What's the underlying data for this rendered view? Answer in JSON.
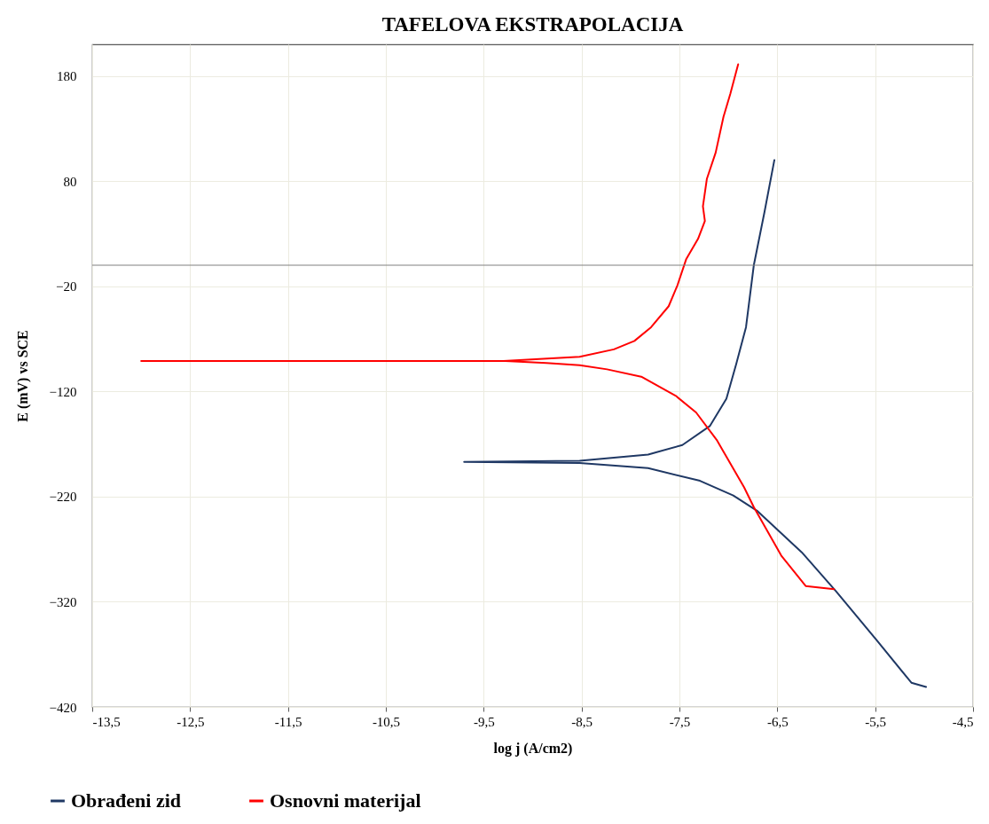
{
  "chart_data": {
    "type": "line",
    "title": "TAFELOVA EKSTRAPOLACIJA",
    "xlabel": "log j (A/cm2)",
    "ylabel": "E (mV) vs SCE",
    "xlim": [
      -13.5,
      -4.5
    ],
    "xticks": [
      {
        "value": -13.5,
        "label": "-13,5"
      },
      {
        "value": -12.5,
        "label": "-12,5"
      },
      {
        "value": -11.5,
        "label": "-11,5"
      },
      {
        "value": -10.5,
        "label": "-10,5"
      },
      {
        "value": -9.5,
        "label": "-9,5"
      },
      {
        "value": -8.5,
        "label": "-8,5"
      },
      {
        "value": -7.5,
        "label": "-7,5"
      },
      {
        "value": -6.5,
        "label": "-6,5"
      },
      {
        "value": -5.5,
        "label": "-5,5"
      },
      {
        "value": -4.5,
        "label": "-4,5"
      }
    ],
    "ylim": [
      -420,
      210
    ],
    "yticks": [
      -420,
      -320,
      -220,
      -120,
      -20,
      80,
      180
    ],
    "grid": true,
    "legend": "bottom",
    "marker": "none",
    "line_style": "solid",
    "ref_lines": [
      {
        "axis": "y",
        "value": 0,
        "color": "#808080"
      }
    ],
    "series": [
      {
        "name": "Obrađeni zid",
        "color": "#1f3864",
        "x": [
          -4.98,
          -5.13,
          -5.48,
          -5.9,
          -6.25,
          -6.7,
          -6.95,
          -7.29,
          -7.82,
          -8.52,
          -9.7,
          -8.52,
          -7.82,
          -7.47,
          -7.19,
          -7.02,
          -6.92,
          -6.82,
          -6.74,
          -6.63,
          -6.53
        ],
        "values": [
          -401,
          -397,
          -357,
          -310,
          -273,
          -234,
          -219,
          -205,
          -193,
          -188,
          -187,
          -186,
          -180,
          -171,
          -153,
          -127,
          -94,
          -59,
          0,
          51,
          100
        ]
      },
      {
        "name": "Osnovni materijal",
        "color": "#ff0000",
        "x": [
          -5.92,
          -6.21,
          -6.46,
          -6.74,
          -6.84,
          -7.12,
          -7.33,
          -7.54,
          -7.89,
          -8.24,
          -8.52,
          -8.86,
          -9.28,
          -13.0,
          -9.3,
          -8.52,
          -8.17,
          -7.96,
          -7.79,
          -7.61,
          -7.52,
          -7.43,
          -7.31,
          -7.24,
          -7.26,
          -7.22,
          -7.13,
          -7.05,
          -6.98,
          -6.9
        ],
        "values": [
          -308,
          -305,
          -276,
          -230,
          -211,
          -166,
          -140,
          -124,
          -106,
          -99,
          -95,
          -93,
          -91,
          -91,
          -91,
          -87,
          -80,
          -72,
          -59,
          -39,
          -19,
          6,
          25,
          42,
          56,
          82,
          107,
          141,
          163,
          191
        ]
      }
    ]
  }
}
